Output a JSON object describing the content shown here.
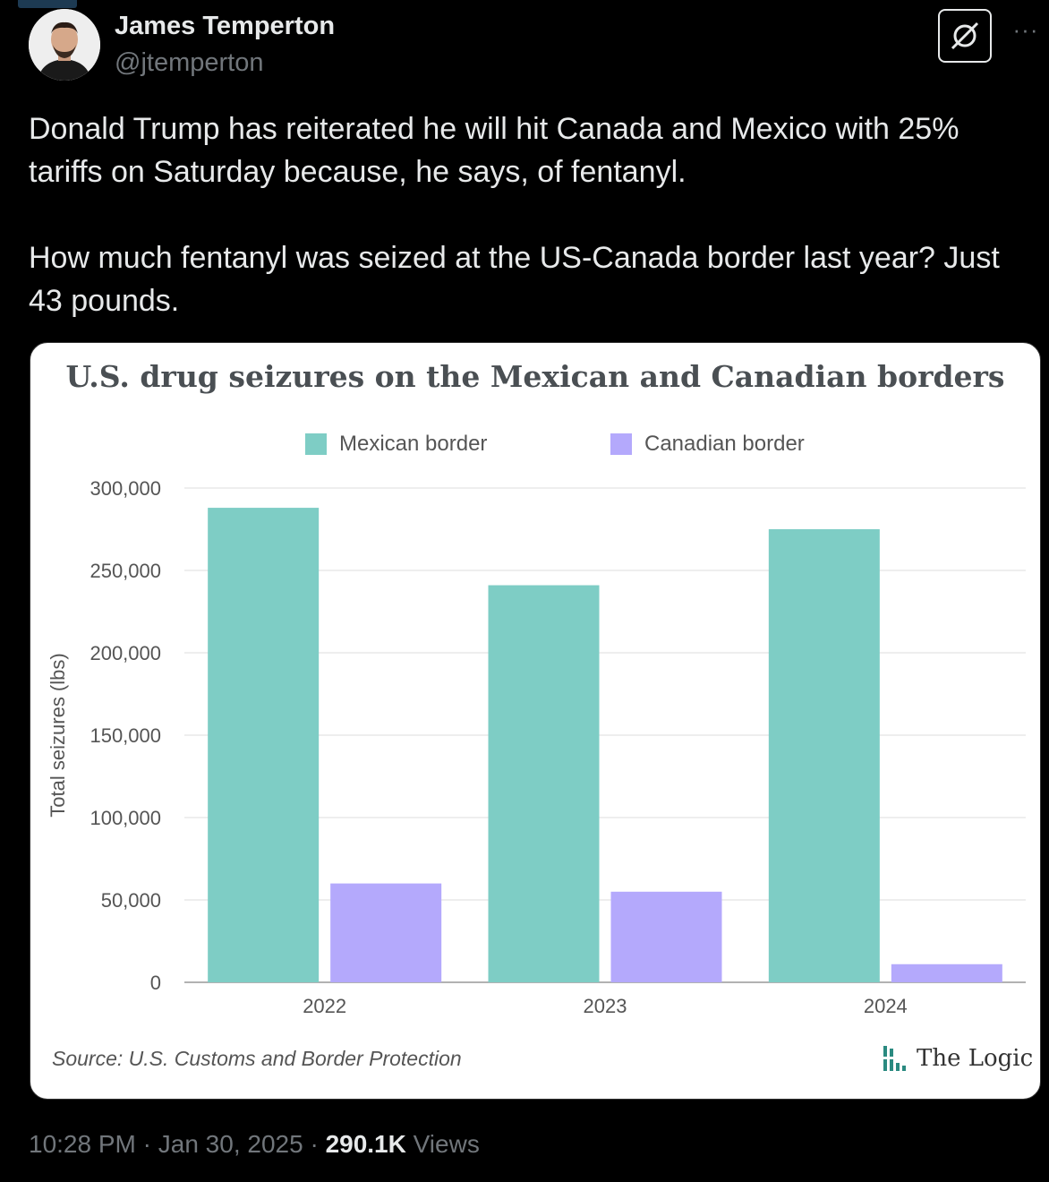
{
  "author": {
    "name": "James Temperton",
    "handle": "@jtemperton"
  },
  "tweet": {
    "paragraph1": "Donald Trump has reiterated he will hit Canada and Mexico with 25% tariffs on Saturday because, he says, of fentanyl.",
    "paragraph2": "How much fentanyl was seized at the US-Canada border last year? Just 43 pounds."
  },
  "icons": {
    "grok": "grok-icon",
    "more": "more-icon",
    "brand_logo": "bar-logo-icon"
  },
  "colors": {
    "mexican": "#7ecdc5",
    "canadian": "#b4a9fc"
  },
  "chart_data": {
    "type": "bar",
    "title": "U.S. drug seizures on the Mexican and Canadian borders",
    "categories": [
      "2022",
      "2023",
      "2024"
    ],
    "series": [
      {
        "name": "Mexican border",
        "values": [
          288000,
          241000,
          275000
        ]
      },
      {
        "name": "Canadian border",
        "values": [
          60000,
          55000,
          11000
        ]
      }
    ],
    "ylabel": "Total seizures (lbs)",
    "xlabel": "",
    "ylim": [
      0,
      300000
    ],
    "yticks": [
      0,
      50000,
      100000,
      150000,
      200000,
      250000,
      300000
    ],
    "ytick_labels": [
      "0",
      "50,000",
      "100,000",
      "150,000",
      "200,000",
      "250,000",
      "300,000"
    ],
    "grid": true,
    "legend": "top"
  },
  "card_footer": {
    "source": "Source: U.S. Customs and Border Protection",
    "brand": "The Logic"
  },
  "meta": {
    "time": "10:28 PM",
    "date": "Jan 30, 2025",
    "views_count": "290.1K",
    "views_label": "Views",
    "separator": "·"
  }
}
